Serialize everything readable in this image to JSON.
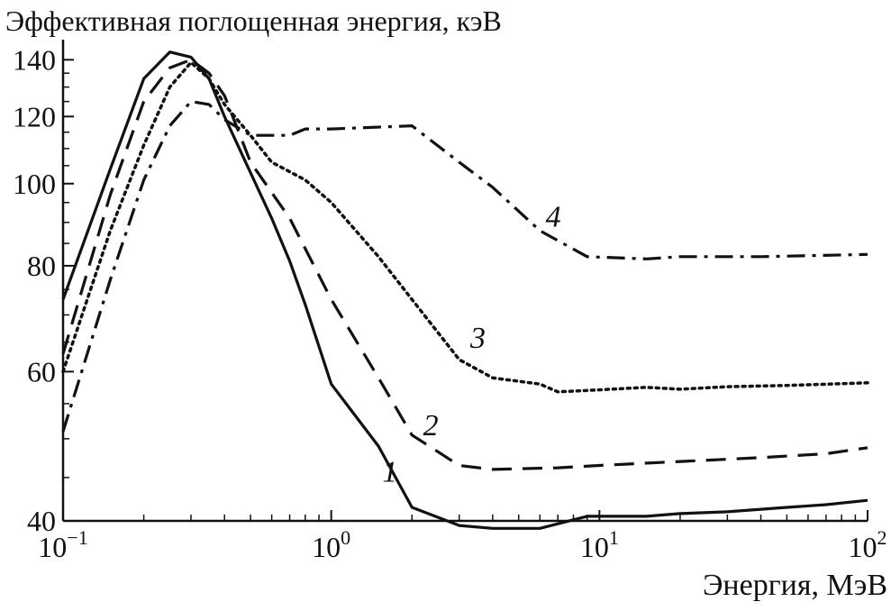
{
  "chart_data": {
    "type": "line",
    "title": "",
    "ylabel": "Эффективная поглощенная энергия, кэВ",
    "xlabel": "Энергия, МэВ",
    "x_scale": "log",
    "y_scale": "log",
    "xlim": [
      0.1,
      100
    ],
    "ylim": [
      40,
      145
    ],
    "x_ticks": [
      {
        "value": 0.1,
        "base": "10",
        "exp": "−1"
      },
      {
        "value": 1,
        "base": "10",
        "exp": "0"
      },
      {
        "value": 10,
        "base": "10",
        "exp": "1"
      },
      {
        "value": 100,
        "base": "10",
        "exp": "2"
      }
    ],
    "y_ticks": [
      {
        "value": 40,
        "label": "40"
      },
      {
        "value": 60,
        "label": "60"
      },
      {
        "value": 80,
        "label": "80"
      },
      {
        "value": 100,
        "label": "100"
      },
      {
        "value": 120,
        "label": "120"
      },
      {
        "value": 140,
        "label": "140"
      }
    ],
    "grid": false,
    "legend": "none",
    "series": [
      {
        "name": "1",
        "style": "solid",
        "label_at": [
          1.55,
          44.5
        ],
        "points": [
          [
            0.1,
            73
          ],
          [
            0.15,
            104
          ],
          [
            0.2,
            133
          ],
          [
            0.25,
            143
          ],
          [
            0.3,
            141
          ],
          [
            0.35,
            133
          ],
          [
            0.4,
            120
          ],
          [
            0.5,
            103
          ],
          [
            0.6,
            91
          ],
          [
            0.7,
            81
          ],
          [
            0.8,
            72
          ],
          [
            1,
            58
          ],
          [
            1.5,
            49
          ],
          [
            2,
            41.5
          ],
          [
            3,
            39.5
          ],
          [
            4,
            39.2
          ],
          [
            6,
            39.2
          ],
          [
            9,
            40.5
          ],
          [
            15,
            40.5
          ],
          [
            20,
            40.8
          ],
          [
            30,
            41
          ],
          [
            50,
            41.5
          ],
          [
            70,
            41.8
          ],
          [
            100,
            42.3
          ]
        ]
      },
      {
        "name": "2",
        "style": "dashed",
        "label_at": [
          2.2,
          50.5
        ],
        "points": [
          [
            0.1,
            63
          ],
          [
            0.15,
            97
          ],
          [
            0.2,
            125
          ],
          [
            0.25,
            137
          ],
          [
            0.3,
            140
          ],
          [
            0.35,
            135
          ],
          [
            0.4,
            127
          ],
          [
            0.5,
            106
          ],
          [
            0.7,
            91
          ],
          [
            1,
            73
          ],
          [
            1.5,
            59
          ],
          [
            2,
            50.5
          ],
          [
            3,
            46.5
          ],
          [
            4,
            46
          ],
          [
            7,
            46.2
          ],
          [
            10,
            46.5
          ],
          [
            20,
            47
          ],
          [
            40,
            47.5
          ],
          [
            70,
            48
          ],
          [
            100,
            48.8
          ]
        ]
      },
      {
        "name": "3",
        "style": "dotted",
        "label_at": [
          3.3,
          64
        ],
        "points": [
          [
            0.1,
            60
          ],
          [
            0.15,
            88
          ],
          [
            0.2,
            111
          ],
          [
            0.25,
            130
          ],
          [
            0.3,
            139
          ],
          [
            0.35,
            133
          ],
          [
            0.4,
            124
          ],
          [
            0.5,
            114
          ],
          [
            0.6,
            106
          ],
          [
            0.8,
            101
          ],
          [
            1,
            95
          ],
          [
            1.5,
            82
          ],
          [
            2,
            73
          ],
          [
            3,
            62
          ],
          [
            4,
            59
          ],
          [
            6,
            58
          ],
          [
            7,
            56.8
          ],
          [
            9,
            57
          ],
          [
            15,
            57.5
          ],
          [
            20,
            57.2
          ],
          [
            30,
            57.6
          ],
          [
            50,
            57.8
          ],
          [
            100,
            58.2
          ]
        ]
      },
      {
        "name": "4",
        "style": "dashdot",
        "label_at": [
          6.3,
          89
        ],
        "points": [
          [
            0.1,
            51
          ],
          [
            0.15,
            77
          ],
          [
            0.2,
            101
          ],
          [
            0.25,
            117
          ],
          [
            0.3,
            125
          ],
          [
            0.35,
            124
          ],
          [
            0.4,
            119
          ],
          [
            0.5,
            114
          ],
          [
            0.7,
            114
          ],
          [
            0.8,
            116
          ],
          [
            1,
            116
          ],
          [
            2,
            117
          ],
          [
            3,
            106
          ],
          [
            4,
            99
          ],
          [
            6,
            88
          ],
          [
            9,
            82
          ],
          [
            15,
            81.5
          ],
          [
            20,
            82
          ],
          [
            40,
            82
          ],
          [
            100,
            82.5
          ]
        ]
      }
    ]
  }
}
